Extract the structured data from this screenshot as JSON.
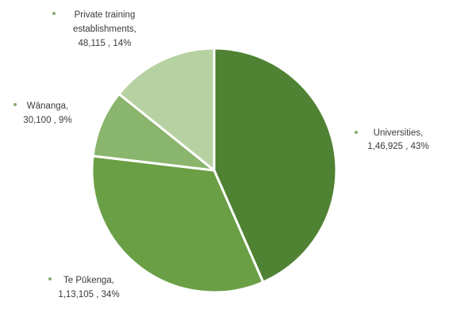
{
  "chart_data": {
    "type": "pie",
    "start_angle_deg": 0,
    "direction": "clockwise",
    "slices": [
      {
        "name": "Universities",
        "value_text": "1,46,925",
        "percent_text": "43%",
        "value": 146925,
        "color": "#4f8233"
      },
      {
        "name": "Te Pūkenga",
        "value_text": "1,13,105",
        "percent_text": "34%",
        "value": 113105,
        "color": "#6a9f45"
      },
      {
        "name": "Wānanga",
        "value_text": "30,100",
        "percent_text": "9%",
        "value": 30100,
        "color": "#8ab56c"
      },
      {
        "name": "Private training establishments",
        "value_text": "48,115",
        "percent_text": "14%",
        "value": 48115,
        "color": "#b7d2a2"
      }
    ]
  },
  "labels": {
    "universities": {
      "line1": "Universities,",
      "line2": "1,46,925 , 43%"
    },
    "tepukenga": {
      "line1": "Te Pūkenga,",
      "line2": "1,13,105 , 34%"
    },
    "wananga": {
      "line1": "Wānanga,",
      "line2": "30,100 , 9%"
    },
    "pte": {
      "line1": "Private training",
      "line2": "establishments,",
      "line3": "48,115 , 14%"
    }
  }
}
